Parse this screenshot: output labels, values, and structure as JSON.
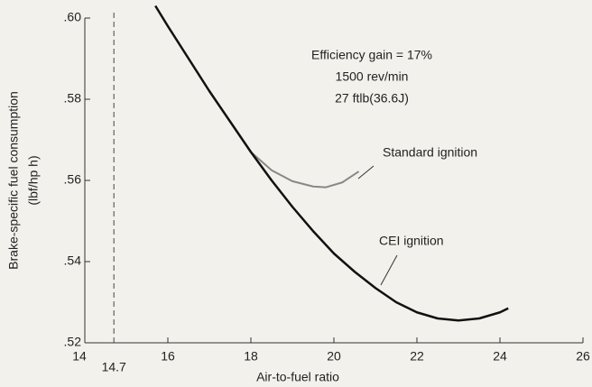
{
  "chart_data": {
    "type": "line",
    "xlabel": "Air-to-fuel ratio",
    "ylabel": [
      "Brake-specific fuel consumption",
      "(lbf/hp h)"
    ],
    "annotations": [
      "Efficiency gain = 17%",
      "1500 rev/min",
      "27 ftlb(36.6J)"
    ],
    "vline": {
      "value": 14.7,
      "label": "14.7"
    },
    "xlim": [
      14,
      26
    ],
    "xticks": [
      14,
      16,
      18,
      20,
      22,
      24,
      26
    ],
    "ylim": [
      0.52,
      0.6
    ],
    "yticks": [
      {
        "value": 0.52,
        "label": ".52"
      },
      {
        "value": 0.54,
        "label": ".54"
      },
      {
        "value": 0.56,
        "label": ".56"
      },
      {
        "value": 0.58,
        "label": ".58"
      },
      {
        "value": 0.6,
        "label": ".60"
      }
    ],
    "series": [
      {
        "name": "Standard ignition",
        "color": "#888888",
        "x": [
          15.7,
          16,
          16.5,
          17,
          17.5,
          18,
          18.5,
          19,
          19.5,
          19.8,
          20.2,
          20.6
        ],
        "values": [
          0.603,
          0.598,
          0.59,
          0.582,
          0.5745,
          0.567,
          0.5625,
          0.5598,
          0.5585,
          0.5583,
          0.5595,
          0.5622
        ]
      },
      {
        "name": "CEI ignition",
        "color": "#111111",
        "x": [
          15.7,
          16,
          16.5,
          17,
          17.5,
          18,
          18.5,
          19,
          19.5,
          20,
          20.5,
          21,
          21.5,
          22,
          22.5,
          23,
          23.5,
          24,
          24.2
        ],
        "values": [
          0.603,
          0.598,
          0.59,
          0.582,
          0.5745,
          0.567,
          0.56,
          0.5535,
          0.5475,
          0.542,
          0.5375,
          0.5335,
          0.53,
          0.5275,
          0.526,
          0.5255,
          0.526,
          0.5275,
          0.5285
        ]
      }
    ]
  }
}
